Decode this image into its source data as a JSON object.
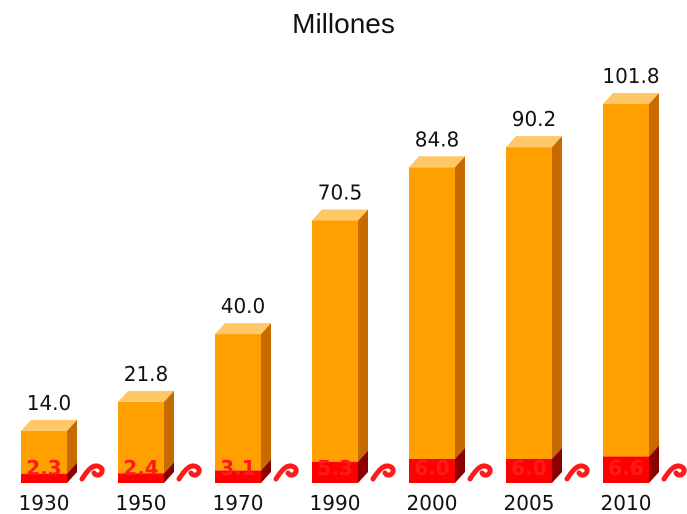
{
  "chart_data": {
    "type": "bar",
    "title": "Millones",
    "categories": [
      "1930",
      "1950",
      "1970",
      "1990",
      "2000",
      "2005",
      "2010"
    ],
    "series": [
      {
        "values": [
          14.0,
          21.8,
          40.0,
          70.5,
          84.8,
          90.2,
          101.8
        ],
        "labels": [
          "14.0",
          "21.8",
          "40.0",
          "70.5",
          "84.8",
          "90.2",
          "101.8"
        ]
      },
      {
        "values": [
          2.3,
          2.4,
          3.1,
          5.3,
          6.0,
          6.0,
          6.6
        ],
        "labels": [
          "2.3",
          "2.4",
          "3.1",
          "5.3",
          "6.0",
          "6.0",
          "6.6"
        ]
      }
    ],
    "xlabel": "",
    "ylabel": "",
    "ylim": [
      0,
      101.8
    ],
    "grid": false,
    "legend": "none"
  },
  "colors": {
    "bar_front": "#ff9f00",
    "bar_top": "#ffc766",
    "bar_side": "#c76a00",
    "base_front": "#ff0000",
    "base_side": "#8b0000",
    "base_label": "#ff1a1a",
    "swirl": "#ff1a1a"
  }
}
